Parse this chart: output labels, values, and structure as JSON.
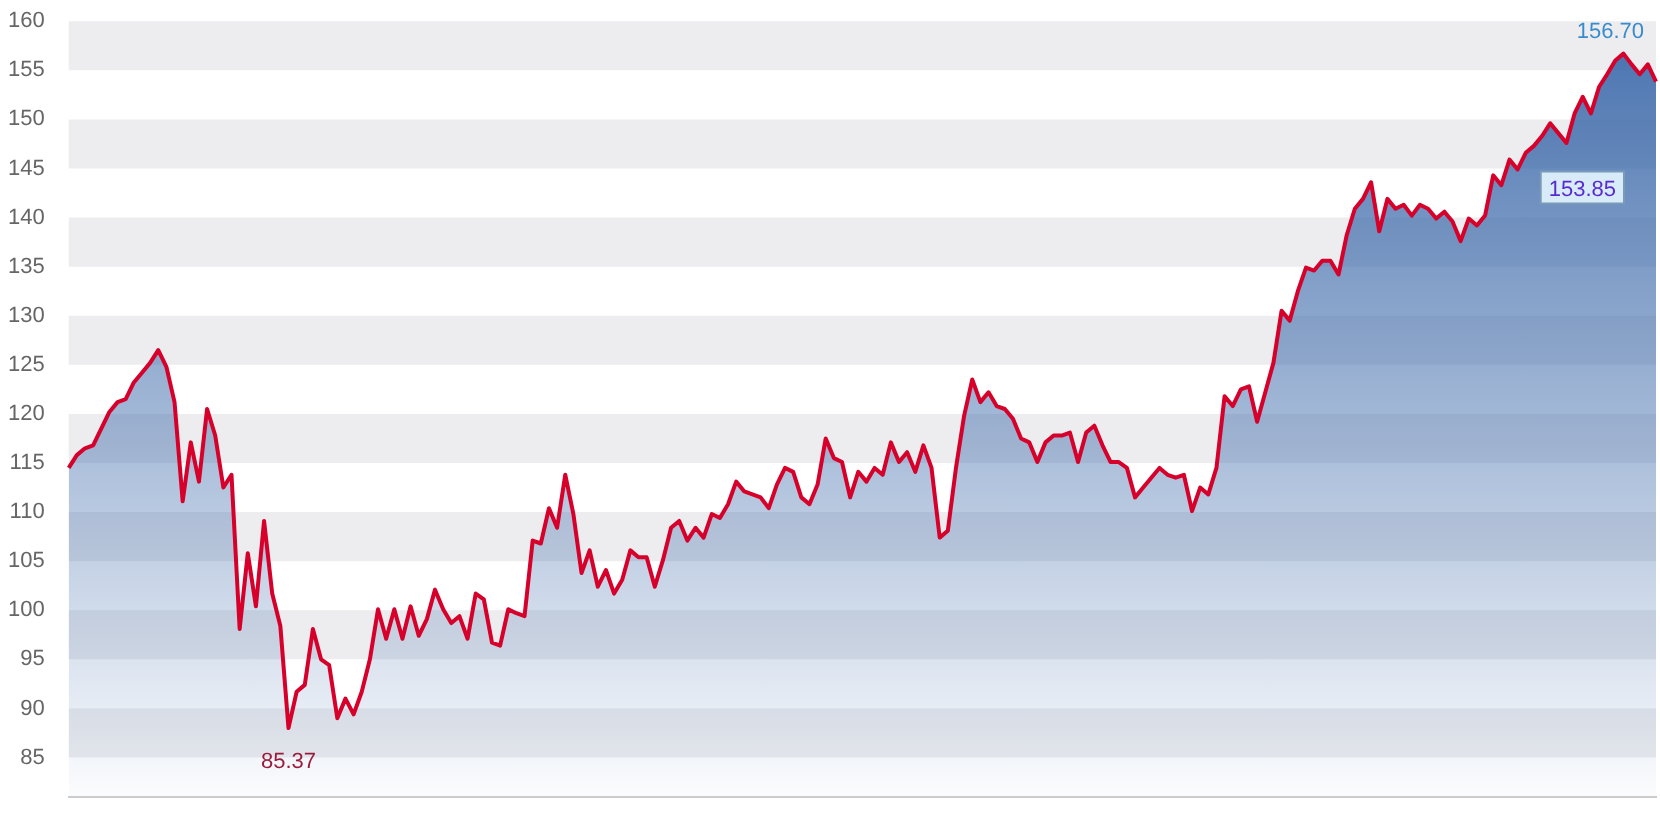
{
  "chart_data": {
    "type": "area",
    "categories": [
      null,
      null,
      null,
      null,
      null,
      null,
      null,
      null,
      null,
      null,
      null,
      null,
      null,
      null,
      null,
      null,
      null,
      null,
      null,
      null,
      null,
      null,
      null,
      null,
      null,
      null,
      null,
      null,
      null,
      null,
      null,
      null,
      null,
      null,
      null,
      null,
      null,
      null,
      null,
      null,
      null,
      null,
      null,
      null,
      null,
      null,
      null,
      null,
      null,
      null,
      null,
      null,
      null,
      null,
      null,
      null,
      null,
      null,
      null,
      null,
      null,
      null,
      null,
      null,
      null,
      null,
      null,
      null,
      null,
      null,
      null,
      null,
      null,
      null,
      null,
      null,
      null,
      null,
      null,
      null,
      null,
      null,
      null,
      null,
      null,
      null,
      null,
      null,
      null,
      null,
      null,
      null,
      null,
      null,
      null,
      null,
      null,
      null,
      null,
      null,
      null,
      null,
      null,
      null,
      null,
      null,
      null,
      null,
      null,
      null,
      null,
      null,
      null,
      null,
      null,
      null,
      null,
      null,
      null,
      null,
      null,
      null,
      null,
      null,
      null,
      null,
      null,
      null,
      null,
      null,
      null,
      null,
      null,
      null,
      null,
      null,
      null,
      null,
      null,
      null,
      null,
      null,
      null,
      null,
      null,
      null,
      null,
      null,
      null,
      null,
      null,
      null,
      null,
      null,
      null,
      null,
      null,
      null,
      null,
      null,
      null,
      null,
      null,
      null,
      null,
      null,
      null,
      null,
      null,
      null,
      null,
      null,
      null,
      null,
      null,
      null,
      null,
      null,
      null,
      null,
      null,
      null,
      null,
      null,
      null,
      null,
      null,
      null,
      null,
      null,
      null,
      null,
      null,
      null,
      null,
      null
    ],
    "series": [
      {
        "color": "#d6002a",
        "values": [
          114.5,
          115.8,
          116.5,
          116.8,
          118.5,
          120.2,
          121.2,
          121.5,
          123.2,
          124.2,
          125.2,
          126.5,
          124.8,
          121.2,
          111.1,
          117.1,
          113.1,
          120.5,
          117.8,
          112.5,
          113.8,
          98.1,
          105.8,
          100.4,
          109.1,
          101.7,
          98.4,
          88.0,
          91.7,
          92.4,
          98.1,
          95.0,
          94.4,
          89.0,
          91.0,
          89.4,
          91.7,
          95.0,
          100.1,
          97.1,
          100.1,
          97.1,
          100.4,
          97.4,
          99.1,
          102.1,
          100.1,
          98.7,
          99.4,
          97.1,
          101.7,
          101.1,
          96.7,
          96.4,
          100.1,
          99.7,
          99.4,
          107.1,
          106.8,
          110.4,
          108.4,
          113.8,
          109.8,
          103.8,
          106.1,
          102.4,
          104.1,
          101.7,
          103.1,
          106.1,
          105.4,
          105.4,
          102.4,
          105.1,
          108.4,
          109.1,
          107.1,
          108.4,
          107.4,
          109.8,
          109.4,
          110.8,
          113.1,
          112.1,
          111.8,
          111.5,
          110.4,
          112.8,
          114.5,
          114.1,
          111.5,
          110.8,
          112.8,
          117.5,
          115.5,
          115.1,
          111.5,
          114.1,
          113.1,
          114.5,
          113.8,
          117.1,
          115.1,
          116.1,
          114.1,
          116.8,
          114.5,
          107.4,
          108.1,
          114.5,
          119.8,
          123.5,
          121.2,
          122.2,
          120.8,
          120.5,
          119.5,
          117.5,
          117.1,
          115.1,
          117.1,
          117.8,
          117.8,
          118.1,
          115.1,
          118.1,
          118.8,
          116.8,
          115.1,
          115.1,
          114.5,
          111.5,
          112.5,
          113.5,
          114.5,
          113.8,
          113.5,
          113.8,
          110.1,
          112.5,
          111.8,
          114.5,
          121.8,
          120.8,
          122.5,
          122.8,
          119.2,
          122.2,
          125.2,
          130.5,
          129.5,
          132.5,
          134.9,
          134.6,
          135.6,
          135.6,
          134.2,
          138.2,
          140.9,
          141.9,
          143.6,
          138.6,
          141.9,
          140.9,
          141.3,
          140.2,
          141.3,
          140.9,
          139.9,
          140.6,
          139.6,
          137.6,
          139.9,
          139.2,
          140.2,
          144.3,
          143.3,
          145.9,
          144.9,
          146.6,
          147.3,
          148.3,
          149.6,
          148.6,
          147.6,
          150.6,
          152.3,
          150.6,
          153.3,
          154.6,
          156.0,
          156.7,
          155.6,
          154.6,
          155.6,
          153.85
        ]
      }
    ],
    "ylim": [
      81,
      160
    ],
    "yticks": [
      85,
      90,
      95,
      100,
      105,
      110,
      115,
      120,
      125,
      130,
      135,
      140,
      145,
      150,
      155,
      160
    ],
    "bands": [
      {
        "axis": "y",
        "from": 155,
        "to": 160,
        "color": "#ededef"
      },
      {
        "axis": "y",
        "from": 145,
        "to": 150,
        "color": "#ededef"
      },
      {
        "axis": "y",
        "from": 135,
        "to": 140,
        "color": "#ededef"
      },
      {
        "axis": "y",
        "from": 125,
        "to": 130,
        "color": "#ededef"
      },
      {
        "axis": "y",
        "from": 115,
        "to": 120,
        "color": "#ededef"
      },
      {
        "axis": "y",
        "from": 105,
        "to": 110,
        "color": "#ededef"
      },
      {
        "axis": "y",
        "from": 95,
        "to": 100,
        "color": "#ededef"
      },
      {
        "axis": "y",
        "from": 85,
        "to": 90,
        "color": "#ededef"
      }
    ],
    "legend": false,
    "tick_labels": "y",
    "marker": "none",
    "line_style": "solid",
    "annotations": [
      "156.70",
      "153.85",
      "85.37"
    ]
  }
}
